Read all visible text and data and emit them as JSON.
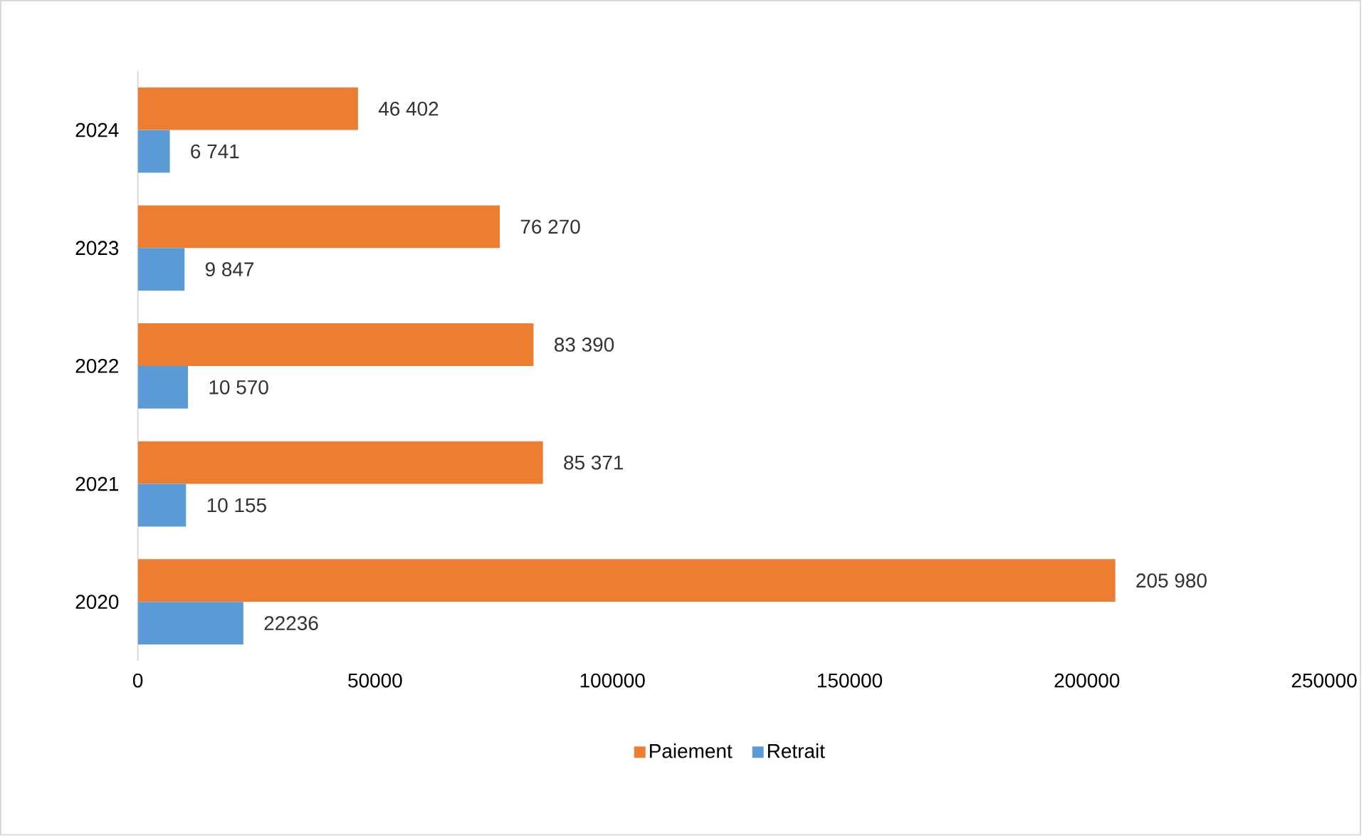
{
  "chart_data": {
    "type": "bar",
    "orientation": "horizontal",
    "categories": [
      "2024",
      "2023",
      "2022",
      "2021",
      "2020"
    ],
    "series": [
      {
        "name": "Paiement",
        "color": "#ed7d31",
        "values": [
          46402,
          76270,
          83390,
          85371,
          205980
        ],
        "value_labels": [
          "46 402",
          "76 270",
          "83 390",
          "85 371",
          "205 980"
        ]
      },
      {
        "name": "Retrait",
        "color": "#5b9bd5",
        "values": [
          6741,
          9847,
          10570,
          10155,
          22236
        ],
        "value_labels": [
          "6 741",
          "9 847",
          "10 570",
          "10 155",
          "22236"
        ]
      }
    ],
    "xlim": [
      0,
      250000
    ],
    "xticks": [
      0,
      50000,
      100000,
      150000,
      200000,
      250000
    ],
    "legend": "bottom",
    "grid": false
  }
}
